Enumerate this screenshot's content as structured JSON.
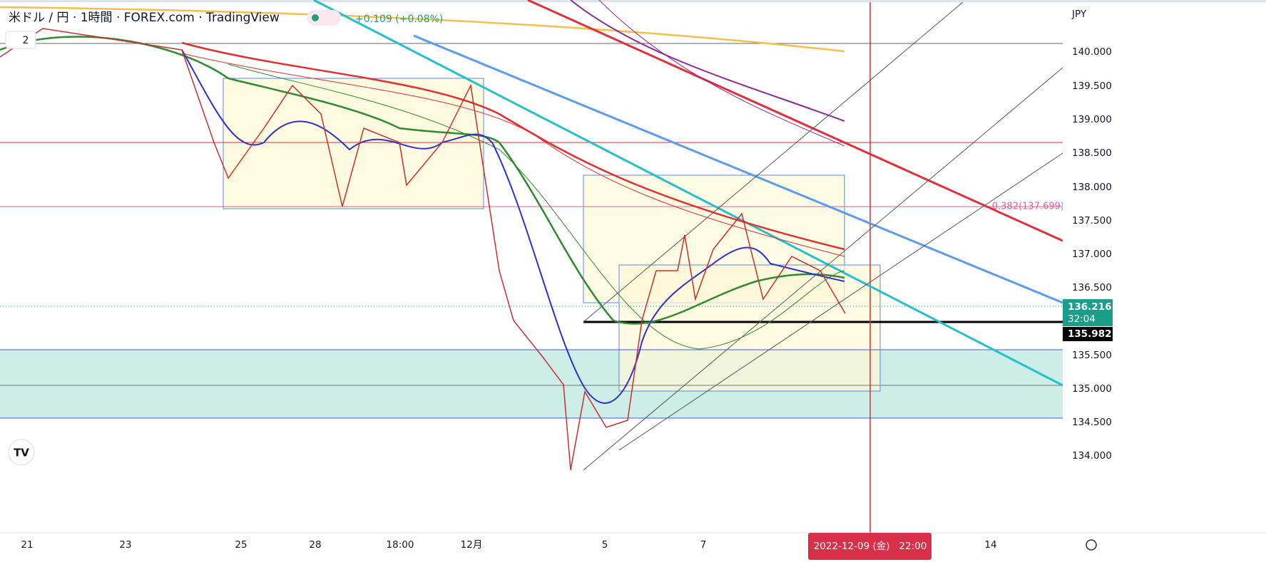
{
  "header": {
    "title": "米ドル / 円 · 1時間 · FOREX.com · TradingView",
    "change": "+0.109 (+0.08%)",
    "indicators_toggle": "2"
  },
  "price_axis": {
    "currency": "JPY",
    "labels": [
      "140.000",
      "139.500",
      "139.000",
      "138.500",
      "138.000",
      "137.500",
      "137.000",
      "136.500",
      "135.500",
      "135.000",
      "134.500",
      "134.000"
    ]
  },
  "price_tags": {
    "current": "136.216",
    "countdown": "32:04",
    "level": "135.982"
  },
  "fib_label": "0.382(137.699)",
  "time_axis": {
    "labels": [
      "21",
      "23",
      "25",
      "28",
      "18:00",
      "12月",
      "5",
      "7",
      "14"
    ],
    "cursor_label": "2022-12-09 (金)   22:00"
  }
}
